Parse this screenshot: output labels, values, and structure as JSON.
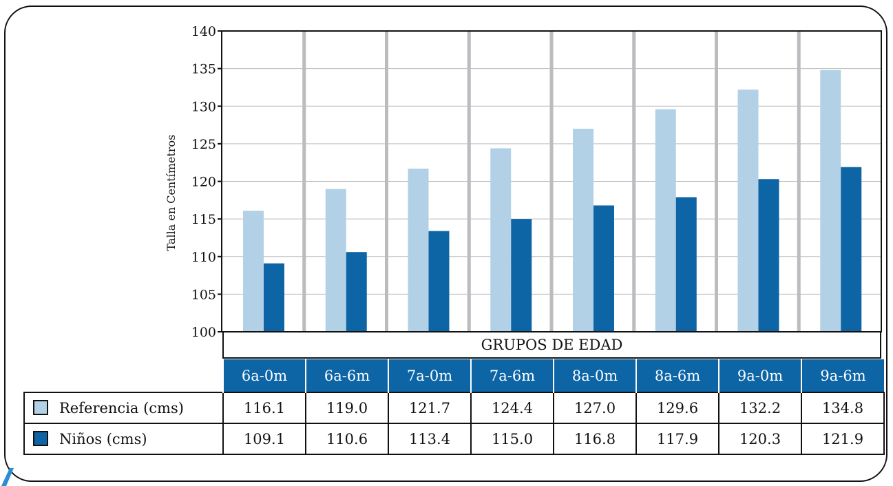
{
  "chart_data": {
    "type": "bar",
    "ylabel": "Talla en Centímetros",
    "xlabel": "GRUPOS DE EDAD",
    "ylim": [
      100,
      140
    ],
    "yticks": [
      "100",
      "105",
      "110",
      "115",
      "120",
      "125",
      "130",
      "135",
      "140"
    ],
    "categories": [
      "6a-0m",
      "6a-6m",
      "7a-0m",
      "7a-6m",
      "8a-0m",
      "8a-6m",
      "9a-0m",
      "9a-6m"
    ],
    "series": [
      {
        "name": "Referencia (cms)",
        "color": "#b3d1e6",
        "values": [
          116.1,
          119.0,
          121.7,
          124.4,
          127.0,
          129.6,
          132.2,
          134.8
        ],
        "labels": [
          "116.1",
          "119.0",
          "121.7",
          "124.4",
          "127.0",
          "129.6",
          "132.2",
          "134.8"
        ]
      },
      {
        "name": "Niños (cms)",
        "color": "#0e65a6",
        "values": [
          109.1,
          110.6,
          113.4,
          115.0,
          116.8,
          117.9,
          120.3,
          121.9
        ],
        "labels": [
          "109.1",
          "110.6",
          "113.4",
          "115.0",
          "116.8",
          "117.9",
          "120.3",
          "121.9"
        ]
      }
    ],
    "grid": true,
    "legend": "table-bottom"
  }
}
